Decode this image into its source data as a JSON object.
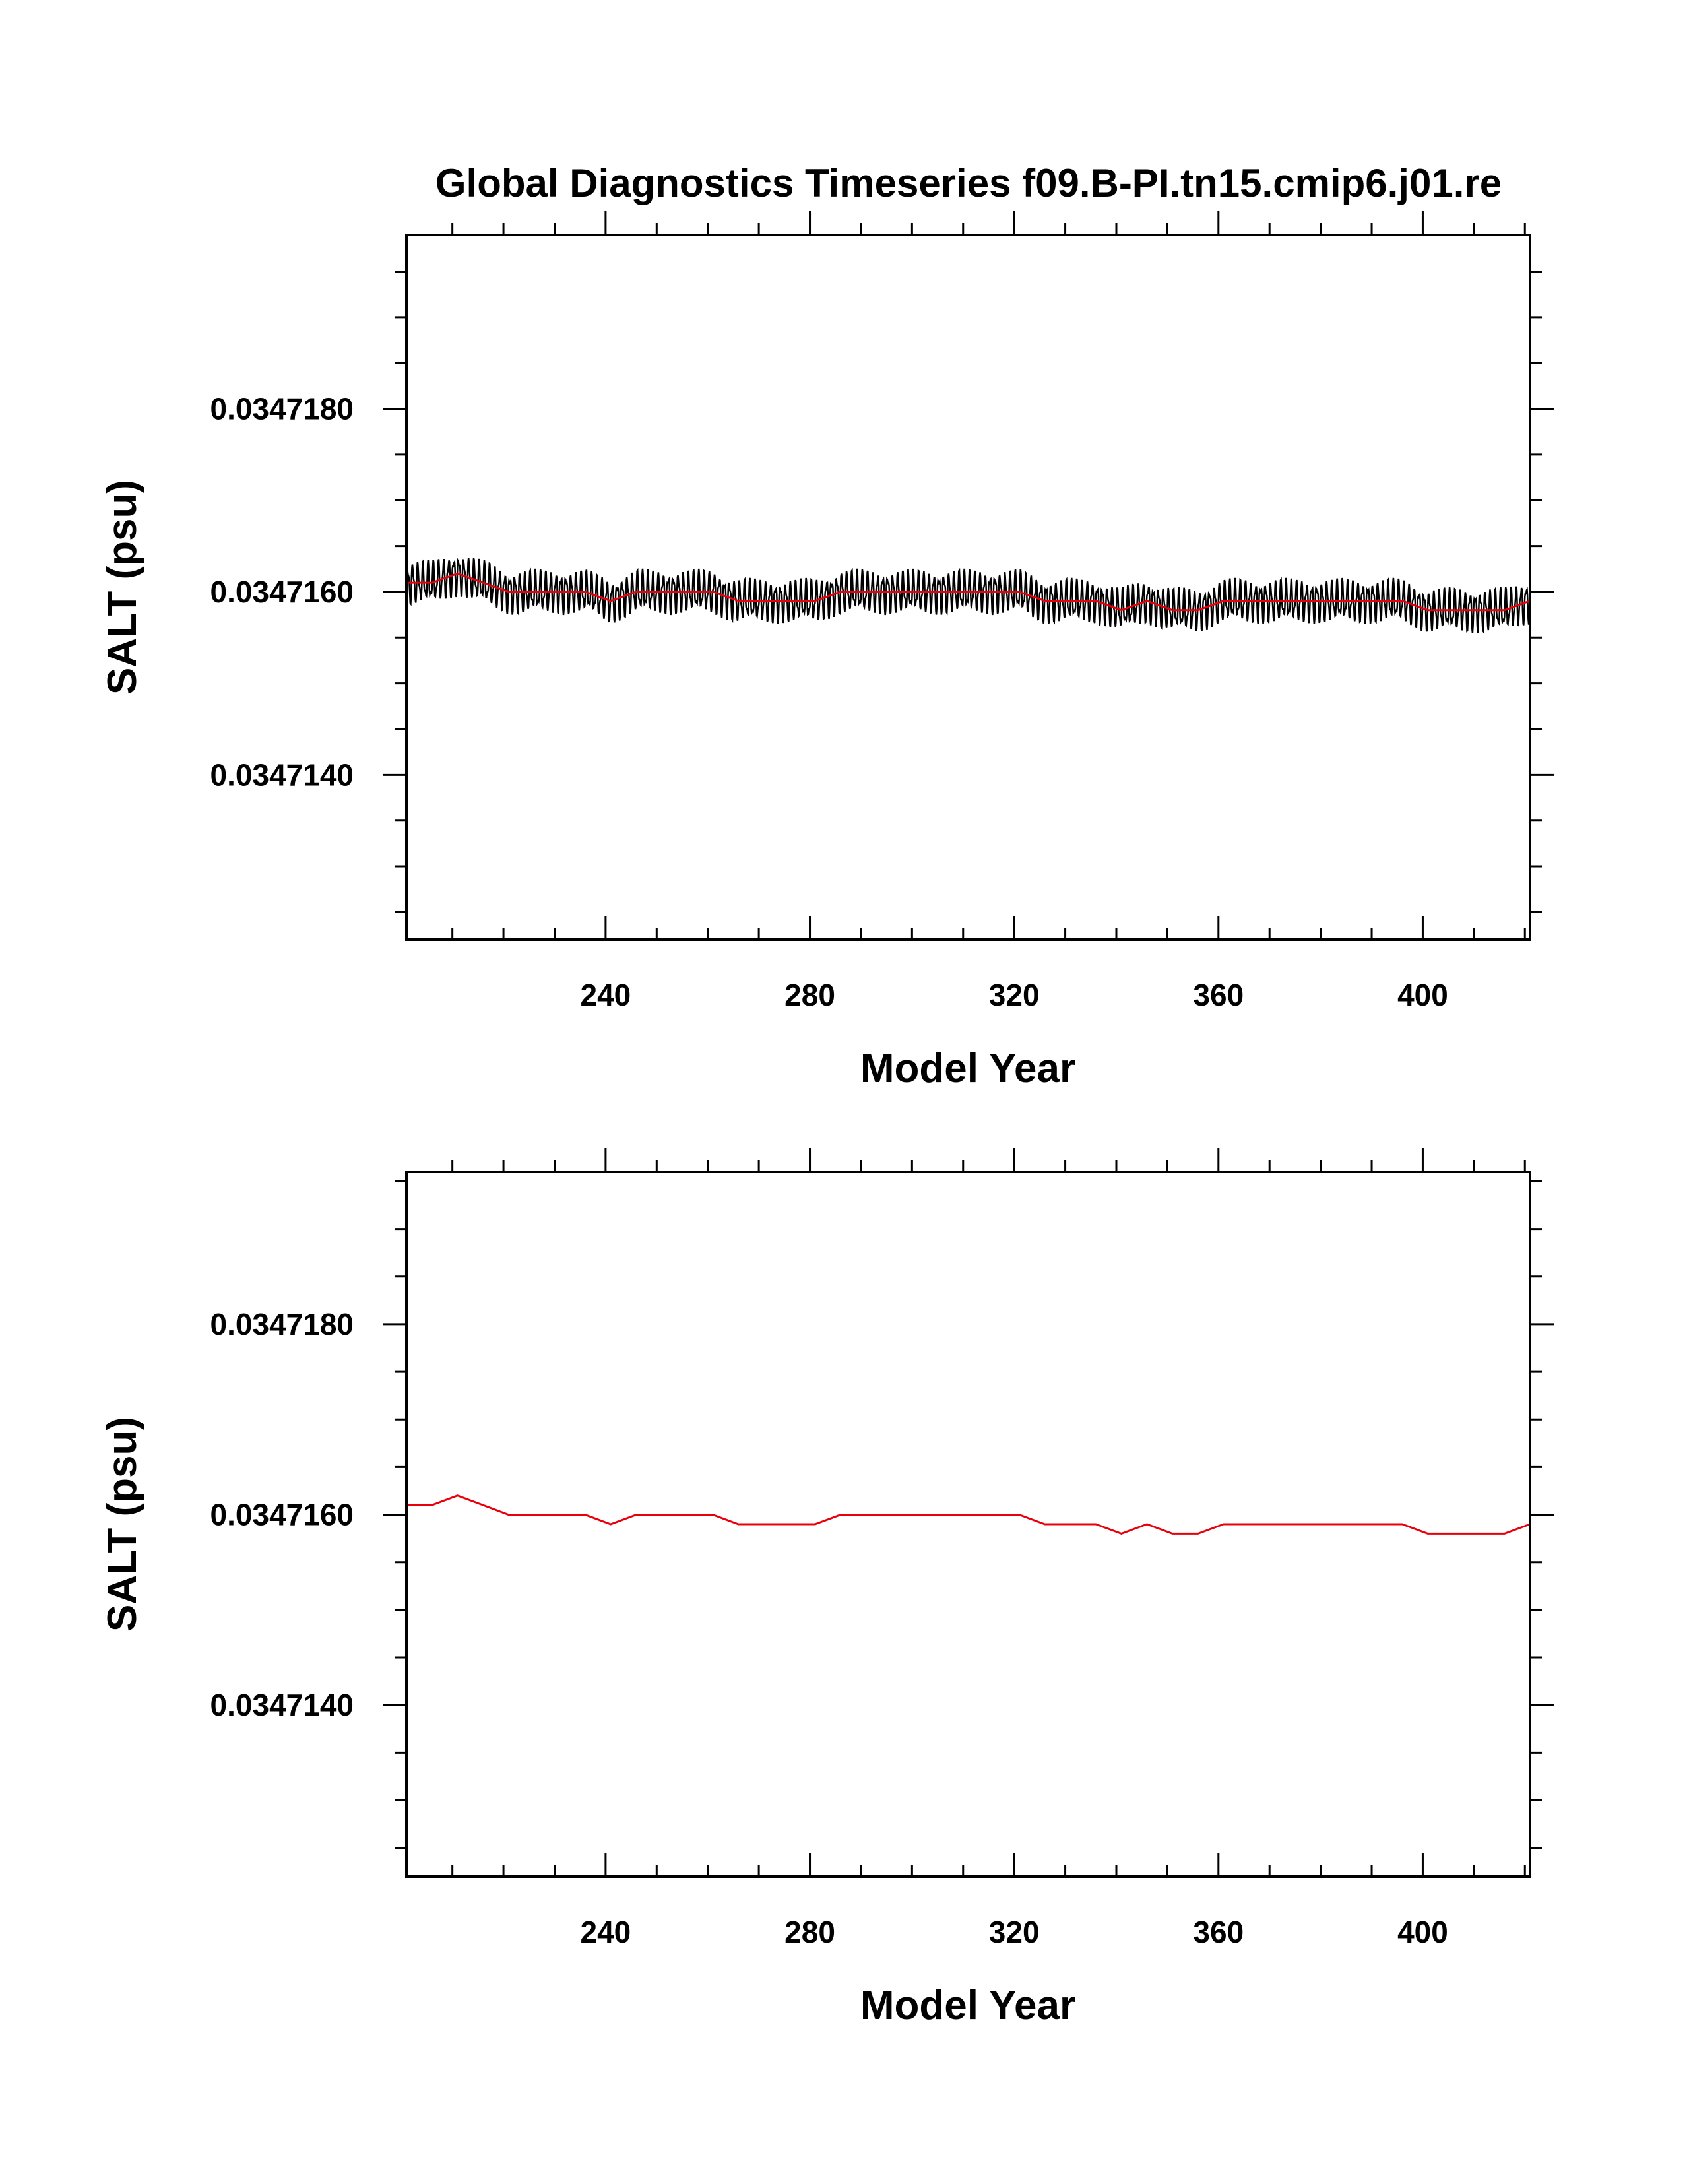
{
  "title": "Global Diagnostics Timeseries f09.B-PI.tn15.cmip6.j01.re",
  "colors": {
    "monthly": "#000000",
    "annual": "#e8000b",
    "frame": "#000000"
  },
  "chart_data": [
    {
      "type": "line",
      "title": "Global Diagnostics Timeseries f09.B-PI.tn15.cmip6.j01.re",
      "xlabel": "Model Year",
      "ylabel": "SALT (psu)",
      "xlim": [
        201,
        421
      ],
      "ylim": [
        0.0347122,
        0.0347199
      ],
      "x_ticks": [
        240,
        280,
        320,
        360,
        400
      ],
      "x_tick_labels": [
        "240",
        "280",
        "320",
        "360",
        "400"
      ],
      "y_ticks": [
        0.034714,
        0.034716,
        0.034718
      ],
      "y_tick_labels": [
        "0.0347140",
        "0.0347160",
        "0.0347180"
      ],
      "grid": false,
      "series": [
        {
          "kind": "monthly",
          "color": "#000000",
          "seasonal_amplitude": 2.2e-07,
          "follows": "annual mean"
        },
        {
          "kind": "annual",
          "color": "#e8000b",
          "x": [
            201,
            206,
            211,
            216,
            221,
            226,
            231,
            236,
            241,
            246,
            251,
            256,
            261,
            266,
            271,
            276,
            281,
            286,
            291,
            296,
            301,
            306,
            311,
            316,
            321,
            326,
            331,
            336,
            341,
            346,
            351,
            356,
            361,
            366,
            371,
            376,
            381,
            386,
            391,
            396,
            401,
            406,
            411,
            416,
            421
          ],
          "values": [
            0.0347161,
            0.0347161,
            0.0347162,
            0.0347161,
            0.034716,
            0.034716,
            0.034716,
            0.034716,
            0.0347159,
            0.034716,
            0.034716,
            0.034716,
            0.034716,
            0.0347159,
            0.0347159,
            0.0347159,
            0.0347159,
            0.034716,
            0.034716,
            0.034716,
            0.034716,
            0.034716,
            0.034716,
            0.034716,
            0.034716,
            0.0347159,
            0.0347159,
            0.0347159,
            0.0347158,
            0.0347159,
            0.0347158,
            0.0347158,
            0.0347159,
            0.0347159,
            0.0347159,
            0.0347159,
            0.0347159,
            0.0347159,
            0.0347159,
            0.0347159,
            0.0347158,
            0.0347158,
            0.0347158,
            0.0347158,
            0.0347159
          ]
        }
      ]
    },
    {
      "type": "line",
      "title": "",
      "xlabel": "Model Year",
      "ylabel": "SALT (psu)",
      "xlim": [
        201,
        421
      ],
      "ylim": [
        0.0347122,
        0.0347196
      ],
      "x_ticks": [
        240,
        280,
        320,
        360,
        400
      ],
      "x_tick_labels": [
        "240",
        "280",
        "320",
        "360",
        "400"
      ],
      "y_ticks": [
        0.034714,
        0.034716,
        0.034718
      ],
      "y_tick_labels": [
        "0.0347140",
        "0.0347160",
        "0.0347180"
      ],
      "grid": false,
      "series": [
        {
          "kind": "annual",
          "color": "#e8000b",
          "x": [
            201,
            206,
            211,
            216,
            221,
            226,
            231,
            236,
            241,
            246,
            251,
            256,
            261,
            266,
            271,
            276,
            281,
            286,
            291,
            296,
            301,
            306,
            311,
            316,
            321,
            326,
            331,
            336,
            341,
            346,
            351,
            356,
            361,
            366,
            371,
            376,
            381,
            386,
            391,
            396,
            401,
            406,
            411,
            416,
            421
          ],
          "values": [
            0.0347161,
            0.0347161,
            0.0347162,
            0.0347161,
            0.034716,
            0.034716,
            0.034716,
            0.034716,
            0.0347159,
            0.034716,
            0.034716,
            0.034716,
            0.034716,
            0.0347159,
            0.0347159,
            0.0347159,
            0.0347159,
            0.034716,
            0.034716,
            0.034716,
            0.034716,
            0.034716,
            0.034716,
            0.034716,
            0.034716,
            0.0347159,
            0.0347159,
            0.0347159,
            0.0347158,
            0.0347159,
            0.0347158,
            0.0347158,
            0.0347159,
            0.0347159,
            0.0347159,
            0.0347159,
            0.0347159,
            0.0347159,
            0.0347159,
            0.0347159,
            0.0347158,
            0.0347158,
            0.0347158,
            0.0347158,
            0.0347159
          ]
        }
      ]
    }
  ]
}
